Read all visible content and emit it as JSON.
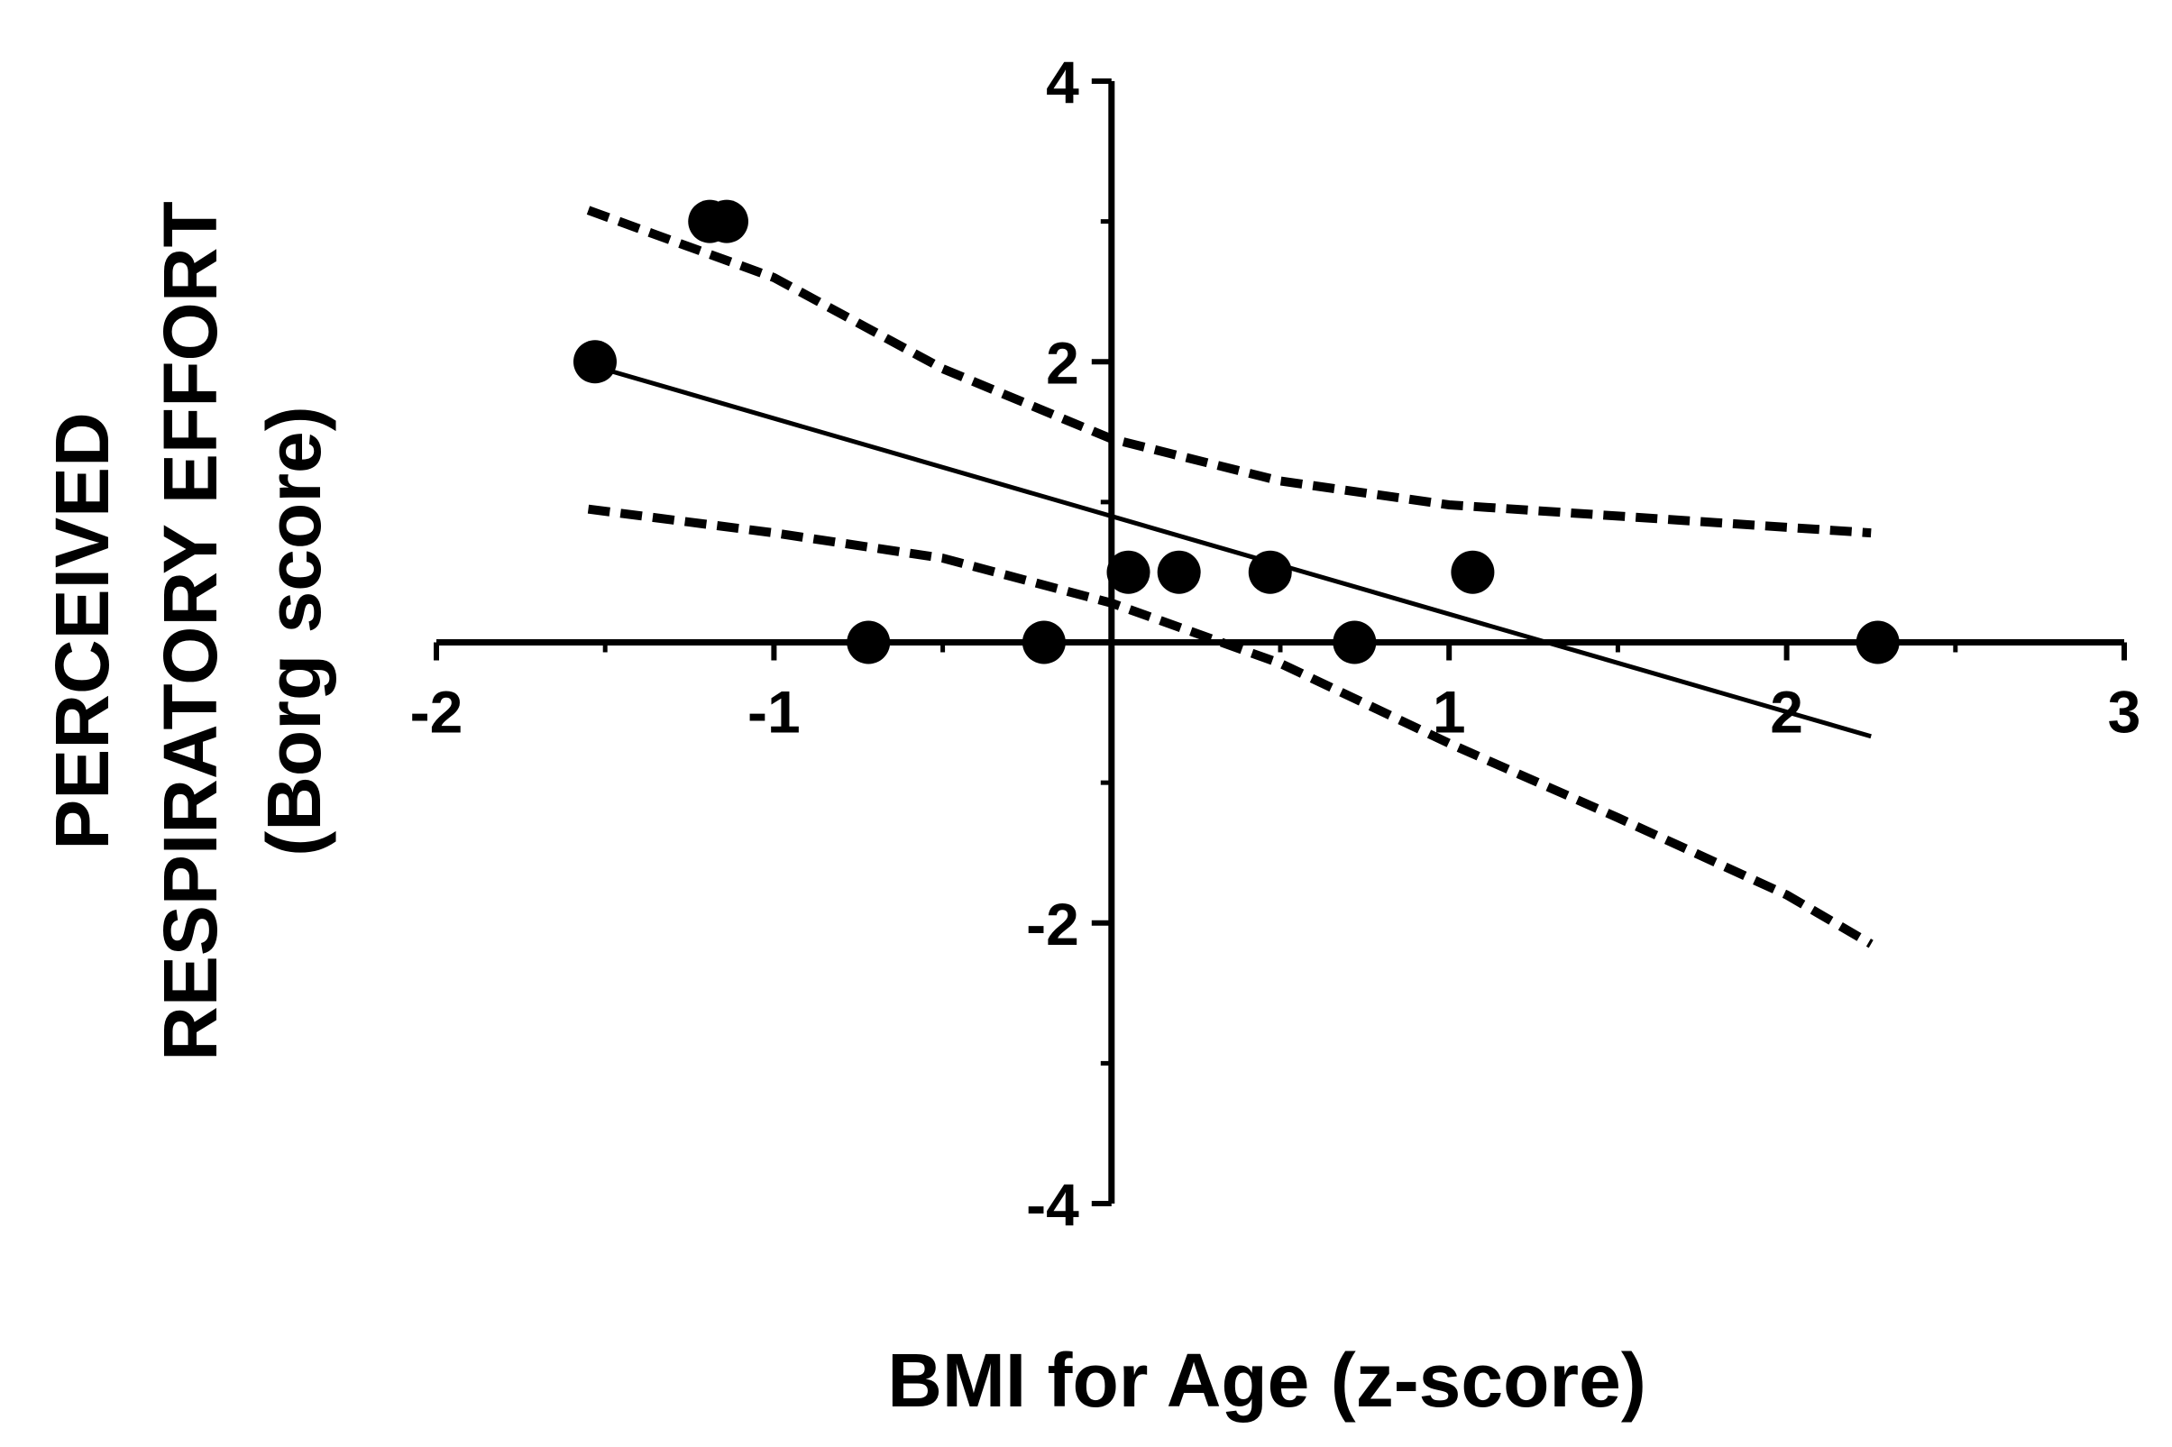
{
  "chart_data": {
    "type": "scatter",
    "xlabel": "BMI for Age (z-score)",
    "ylabel_lines": [
      "PERCEIVED",
      "RESPIRATORY EFFORT",
      "(Borg score)"
    ],
    "xlim": [
      -2,
      3
    ],
    "ylim": [
      -4,
      4
    ],
    "xticks": [
      -2,
      -1,
      1,
      2,
      3
    ],
    "xtick_labels": [
      "-2",
      "-1",
      "1",
      "2",
      "3"
    ],
    "yticks": [
      4,
      2,
      -2,
      -4
    ],
    "ytick_labels": [
      "4",
      "2",
      "-2",
      "-4"
    ],
    "points": [
      {
        "x": -1.53,
        "y": 2.0
      },
      {
        "x": -1.19,
        "y": 3.0
      },
      {
        "x": -1.14,
        "y": 3.0
      },
      {
        "x": -0.72,
        "y": 0.0
      },
      {
        "x": -0.2,
        "y": 0.0
      },
      {
        "x": 0.05,
        "y": 0.5
      },
      {
        "x": 0.2,
        "y": 0.5
      },
      {
        "x": 0.47,
        "y": 0.5
      },
      {
        "x": 0.72,
        "y": 0.0
      },
      {
        "x": 1.07,
        "y": 0.5
      },
      {
        "x": 2.27,
        "y": 0.0
      }
    ],
    "regression_line": {
      "x": [
        -1.55,
        2.25
      ],
      "y": [
        1.98,
        -0.67
      ]
    },
    "ci_upper": {
      "x": [
        -1.55,
        -1.0,
        -0.5,
        0.0,
        0.5,
        1.0,
        1.5,
        2.0,
        2.25
      ],
      "y": [
        3.08,
        2.6,
        1.95,
        1.45,
        1.15,
        0.98,
        0.9,
        0.82,
        0.78
      ]
    },
    "ci_lower": {
      "x": [
        -1.55,
        -1.0,
        -0.5,
        0.0,
        0.5,
        1.0,
        1.5,
        2.0,
        2.25
      ],
      "y": [
        0.95,
        0.78,
        0.6,
        0.28,
        -0.15,
        -0.72,
        -1.25,
        -1.8,
        -2.15
      ]
    },
    "grid": false,
    "legend": false
  }
}
